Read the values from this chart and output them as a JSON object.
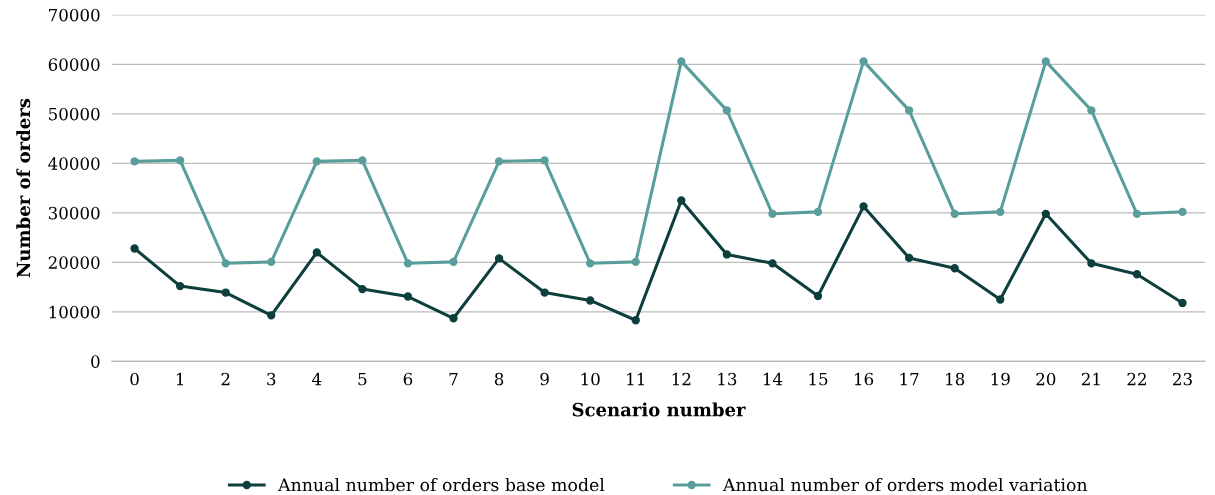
{
  "chart_data": {
    "type": "line",
    "xlabel": "Scenario number",
    "ylabel": "Number of orders",
    "categories": [
      "0",
      "1",
      "2",
      "3",
      "4",
      "5",
      "6",
      "7",
      "8",
      "9",
      "10",
      "11",
      "12",
      "13",
      "14",
      "15",
      "16",
      "17",
      "18",
      "19",
      "20",
      "21",
      "22",
      "23"
    ],
    "series": [
      {
        "name": "Annual number of orders base model",
        "color": "#0d3f3c",
        "values": [
          22800,
          15200,
          13900,
          9300,
          22000,
          14600,
          13100,
          8700,
          20800,
          13900,
          12300,
          8300,
          32500,
          21600,
          19800,
          13200,
          31300,
          20900,
          18800,
          12500,
          29800,
          19800,
          17600,
          11800
        ]
      },
      {
        "name": "Annual number of orders model variation",
        "color": "#5a9e9c",
        "values": [
          40400,
          40600,
          19800,
          20100,
          40400,
          40600,
          19800,
          20100,
          40400,
          40600,
          19800,
          20100,
          60600,
          50700,
          29800,
          30200,
          60600,
          50700,
          29800,
          30200,
          60600,
          50700,
          29800,
          30200
        ]
      }
    ],
    "ylim": [
      0,
      70000
    ],
    "yticks": [
      0,
      10000,
      20000,
      30000,
      40000,
      50000,
      60000,
      70000
    ],
    "grid": "y",
    "legend": "bottom",
    "marker": "circle",
    "line_style": "solid"
  }
}
